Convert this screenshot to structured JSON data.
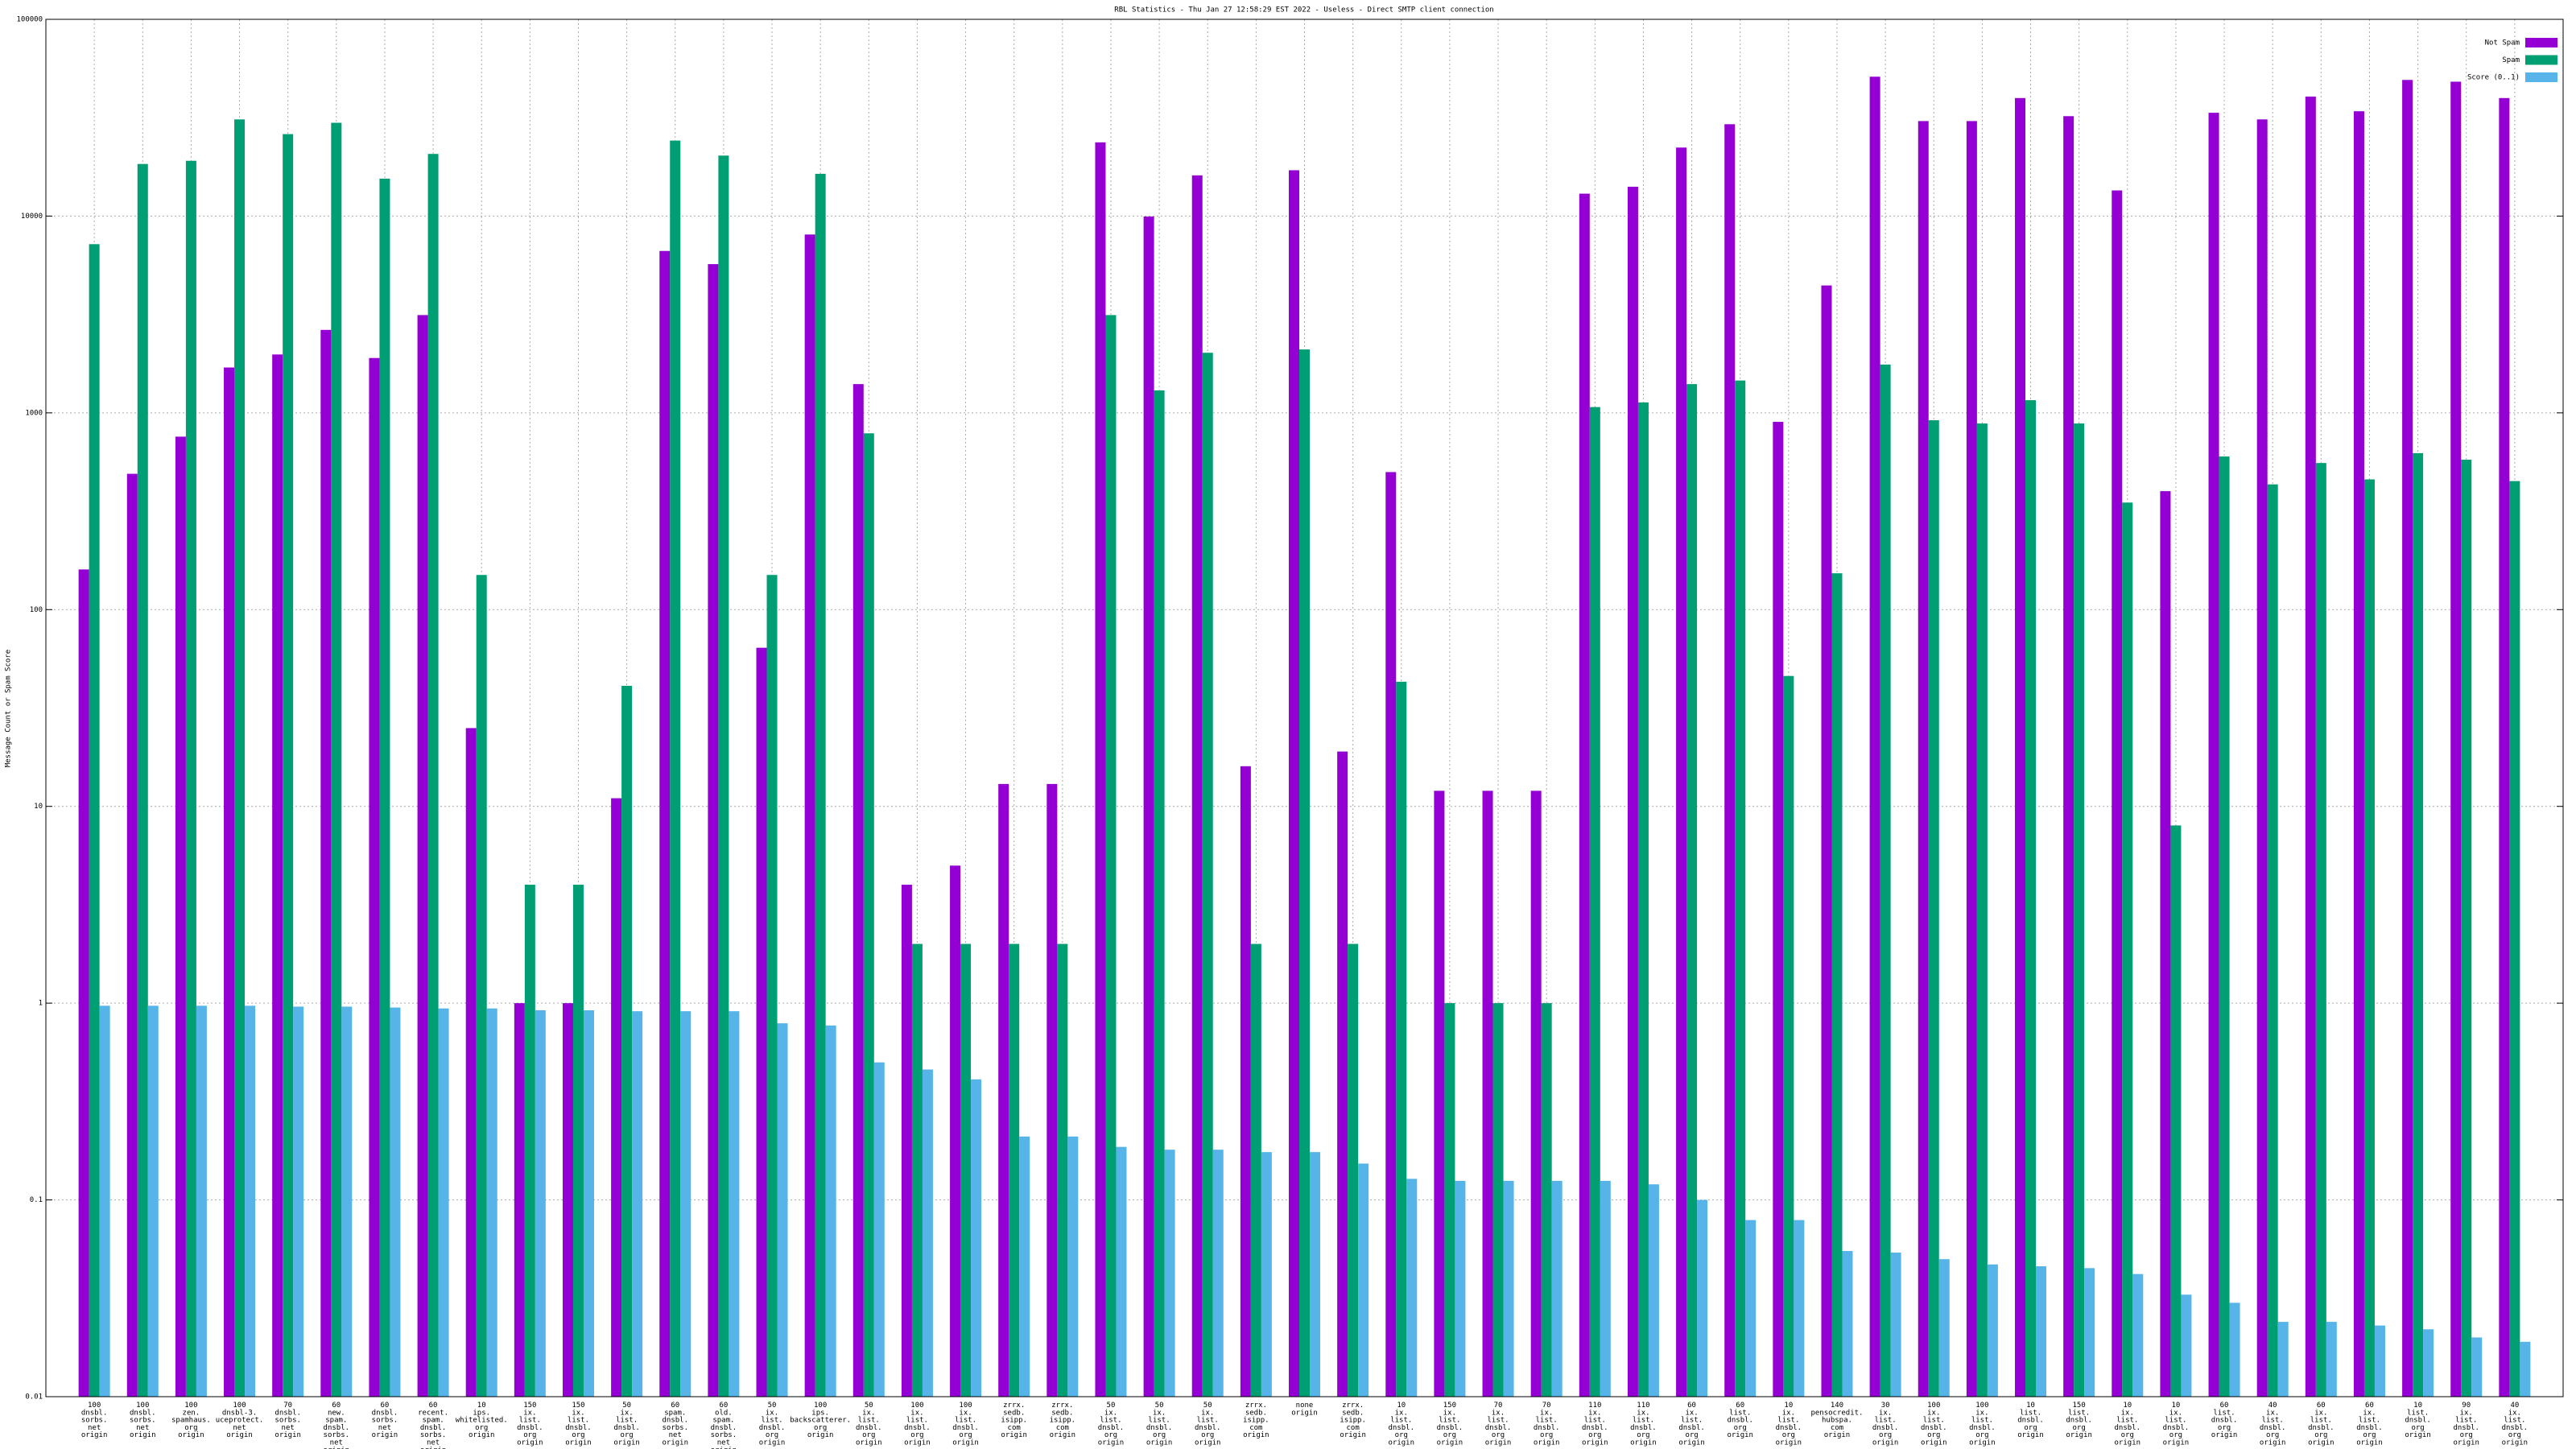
{
  "chart_data": {
    "type": "bar",
    "title": "RBL Statistics - Thu Jan 27 12:58:29 EST 2022 - Useless - Direct SMTP client connection",
    "ylabel": "Message Count or Spam Score",
    "log_y": true,
    "grid": true,
    "legend": "top-right",
    "ylim": [
      0.01,
      100000
    ],
    "yticks": [
      0.01,
      0.1,
      1,
      10,
      100,
      1000,
      10000,
      100000
    ],
    "categories": [
      [
        "100",
        "dnsbl.",
        "sorbs.",
        "net",
        "origin"
      ],
      [
        "100",
        "dnsbl.",
        "sorbs.",
        "net",
        "origin"
      ],
      [
        "100",
        "zen.",
        "spamhaus.",
        "org",
        "origin"
      ],
      [
        "100",
        "dnsbl-3.",
        "uceprotect.",
        "net",
        "origin"
      ],
      [
        "70",
        "dnsbl.",
        "sorbs.",
        "net",
        "origin"
      ],
      [
        "60",
        "new.",
        "spam.",
        "dnsbl.",
        "sorbs.",
        "net",
        "origin"
      ],
      [
        "60",
        "dnsbl.",
        "sorbs.",
        "net",
        "origin"
      ],
      [
        "60",
        "recent.",
        "spam.",
        "dnsbl.",
        "sorbs.",
        "net",
        "origin"
      ],
      [
        "10",
        "ips.",
        "whitelisted.",
        "org",
        "origin"
      ],
      [
        "150",
        "ix.",
        "list.",
        "dnsbl.",
        "org",
        "origin"
      ],
      [
        "150",
        "ix.",
        "list.",
        "dnsbl.",
        "org",
        "origin"
      ],
      [
        "50",
        "ix.",
        "list.",
        "dnsbl.",
        "org",
        "origin"
      ],
      [
        "60",
        "spam.",
        "dnsbl.",
        "sorbs.",
        "net",
        "origin"
      ],
      [
        "60",
        "old.",
        "spam.",
        "dnsbl.",
        "sorbs.",
        "net",
        "origin"
      ],
      [
        "50",
        "ix.",
        "list.",
        "dnsbl.",
        "org",
        "origin"
      ],
      [
        "100",
        "ips.",
        "backscatterer.",
        "org",
        "origin"
      ],
      [
        "50",
        "ix.",
        "list.",
        "dnsbl.",
        "org",
        "origin"
      ],
      [
        "100",
        "ix.",
        "list.",
        "dnsbl.",
        "org",
        "origin"
      ],
      [
        "100",
        "ix.",
        "list.",
        "dnsbl.",
        "org",
        "origin"
      ],
      [
        "zrrx.",
        "sedb.",
        "isipp.",
        "com",
        "origin"
      ],
      [
        "zrrx.",
        "sedb.",
        "isipp.",
        "com",
        "origin"
      ],
      [
        "50",
        "ix.",
        "list.",
        "dnsbl.",
        "org",
        "origin"
      ],
      [
        "50",
        "ix.",
        "list.",
        "dnsbl.",
        "org",
        "origin"
      ],
      [
        "50",
        "ix.",
        "list.",
        "dnsbl.",
        "org",
        "origin"
      ],
      [
        "zrrx.",
        "sedb.",
        "isipp.",
        "com",
        "origin"
      ],
      [
        "none",
        "origin"
      ],
      [
        "zrrx.",
        "sedb.",
        "isipp.",
        "com",
        "origin"
      ],
      [
        "10",
        "ix.",
        "list.",
        "dnsbl.",
        "org",
        "origin"
      ],
      [
        "150",
        "ix.",
        "list.",
        "dnsbl.",
        "org",
        "origin"
      ],
      [
        "70",
        "ix.",
        "list.",
        "dnsbl.",
        "org",
        "origin"
      ],
      [
        "70",
        "ix.",
        "list.",
        "dnsbl.",
        "org",
        "origin"
      ],
      [
        "110",
        "ix.",
        "list.",
        "dnsbl.",
        "org",
        "origin"
      ],
      [
        "110",
        "ix.",
        "list.",
        "dnsbl.",
        "org",
        "origin"
      ],
      [
        "60",
        "ix.",
        "list.",
        "dnsbl.",
        "org",
        "origin"
      ],
      [
        "60",
        "list.",
        "dnsbl.",
        "org",
        "origin"
      ],
      [
        "10",
        "ix.",
        "list.",
        "dnsbl.",
        "org",
        "origin"
      ],
      [
        "140",
        "pensocredit.",
        "hubspa.",
        "com",
        "origin"
      ],
      [
        "30",
        "ix.",
        "list.",
        "dnsbl.",
        "org",
        "origin"
      ],
      [
        "100",
        "ix.",
        "list.",
        "dnsbl.",
        "org",
        "origin"
      ],
      [
        "100",
        "ix.",
        "list.",
        "dnsbl.",
        "org",
        "origin"
      ],
      [
        "10",
        "list.",
        "dnsbl.",
        "org",
        "origin"
      ],
      [
        "150",
        "list.",
        "dnsbl.",
        "org",
        "origin"
      ],
      [
        "10",
        "ix.",
        "list.",
        "dnsbl.",
        "org",
        "origin"
      ],
      [
        "10",
        "ix.",
        "list.",
        "dnsbl.",
        "org",
        "origin"
      ],
      [
        "60",
        "list.",
        "dnsbl.",
        "org",
        "origin"
      ],
      [
        "40",
        "ix.",
        "list.",
        "dnsbl.",
        "org",
        "origin"
      ],
      [
        "60",
        "ix.",
        "list.",
        "dnsbl.",
        "org",
        "origin"
      ],
      [
        "60",
        "ix.",
        "list.",
        "dnsbl.",
        "org",
        "origin"
      ],
      [
        "10",
        "list.",
        "dnsbl.",
        "org",
        "origin"
      ],
      [
        "90",
        "ix.",
        "list.",
        "dnsbl.",
        "org",
        "origin"
      ],
      [
        "40",
        "ix.",
        "list.",
        "dnsbl.",
        "org",
        "origin"
      ]
    ],
    "series": [
      {
        "name": "Not Spam",
        "color": "#9400d3",
        "values": [
          160,
          490,
          757,
          1700,
          1980,
          2640,
          1900,
          3140,
          25,
          1,
          1,
          11,
          6650,
          5700,
          64,
          8060,
          1400,
          4,
          5,
          13,
          13,
          23700,
          9950,
          16100,
          16,
          17100,
          19,
          500,
          12,
          12,
          12,
          13000,
          14100,
          22300,
          29300,
          900,
          4440,
          51100,
          30400,
          30400,
          39800,
          32200,
          13500,
          400,
          33500,
          31000,
          40500,
          34100,
          49200,
          48200,
          39800
        ]
      },
      {
        "name": "Spam",
        "color": "#009e73",
        "values": [
          7200,
          18400,
          19100,
          31000,
          26100,
          29800,
          15500,
          20700,
          150,
          4,
          4,
          41,
          24200,
          20300,
          150,
          16400,
          787,
          2,
          2,
          2,
          2,
          3140,
          1300,
          2020,
          2,
          2100,
          2,
          43,
          1,
          1,
          1,
          1070,
          1130,
          1400,
          1460,
          46,
          153,
          1760,
          917,
          883,
          1160,
          883,
          350,
          8,
          600,
          433,
          556,
          459,
          624,
          578,
          450
        ]
      },
      {
        "name": "Score (0..1)",
        "color": "#56b4e9",
        "values": [
          0.97,
          0.97,
          0.97,
          0.97,
          0.96,
          0.96,
          0.95,
          0.94,
          0.94,
          0.92,
          0.92,
          0.91,
          0.91,
          0.91,
          0.79,
          0.77,
          0.5,
          0.46,
          0.41,
          0.21,
          0.21,
          0.186,
          0.18,
          0.18,
          0.175,
          0.175,
          0.153,
          0.128,
          0.125,
          0.125,
          0.125,
          0.125,
          0.12,
          0.1,
          0.079,
          0.079,
          0.055,
          0.054,
          0.05,
          0.047,
          0.046,
          0.045,
          0.042,
          0.033,
          0.03,
          0.024,
          0.024,
          0.023,
          0.022,
          0.02,
          0.019
        ]
      }
    ]
  }
}
